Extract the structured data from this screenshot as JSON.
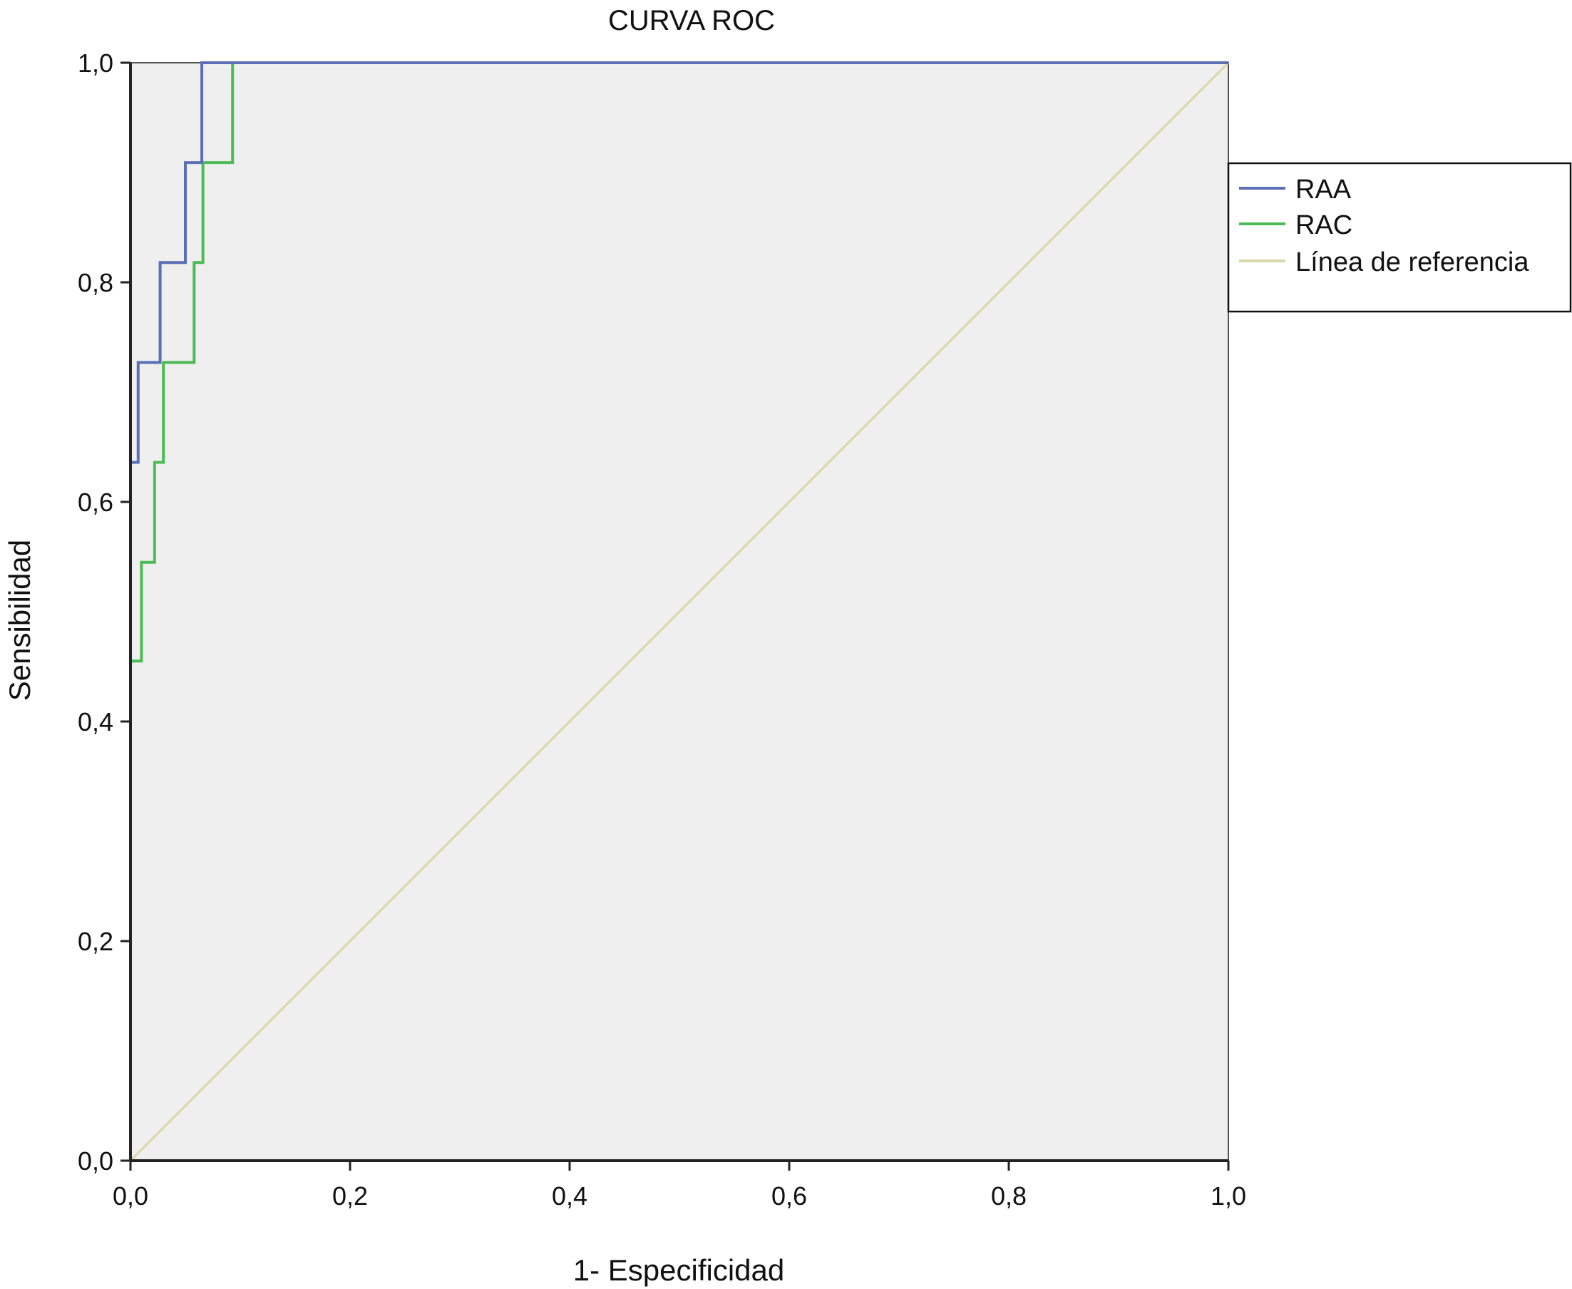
{
  "chart_data": {
    "type": "line",
    "title": "CURVA ROC",
    "xlabel": "1- Especificidad",
    "ylabel": "Sensibilidad",
    "xlim": [
      0,
      1
    ],
    "ylim": [
      0,
      1
    ],
    "x_ticks": [
      0,
      0.2,
      0.4,
      0.6,
      0.8,
      1.0
    ],
    "x_tick_labels": [
      "0,0",
      "0,2",
      "0,4",
      "0,6",
      "0,8",
      "1,0"
    ],
    "y_ticks": [
      0,
      0.2,
      0.4,
      0.6,
      0.8,
      1.0
    ],
    "y_tick_labels": [
      "0,0",
      "0,2",
      "0,4",
      "0,6",
      "0,8",
      "1,0"
    ],
    "grid": false,
    "legend_position": "right",
    "plot_background": "#efefef",
    "series": [
      {
        "name": "RAA",
        "color": "#5a6fb4",
        "step": true,
        "points": [
          [
            0,
            0
          ],
          [
            0,
            0.455
          ],
          [
            0,
            0.636
          ],
          [
            0.007,
            0.636
          ],
          [
            0.007,
            0.727
          ],
          [
            0.027,
            0.727
          ],
          [
            0.027,
            0.818
          ],
          [
            0.05,
            0.818
          ],
          [
            0.05,
            0.909
          ],
          [
            0.065,
            0.909
          ],
          [
            0.065,
            1.0
          ],
          [
            1.0,
            1.0
          ]
        ]
      },
      {
        "name": "RAC",
        "color": "#4dbb55",
        "step": true,
        "points": [
          [
            0,
            0
          ],
          [
            0,
            0.455
          ],
          [
            0.01,
            0.455
          ],
          [
            0.01,
            0.545
          ],
          [
            0.022,
            0.545
          ],
          [
            0.022,
            0.636
          ],
          [
            0.03,
            0.636
          ],
          [
            0.03,
            0.727
          ],
          [
            0.058,
            0.727
          ],
          [
            0.058,
            0.818
          ],
          [
            0.066,
            0.818
          ],
          [
            0.066,
            0.909
          ],
          [
            0.093,
            0.909
          ],
          [
            0.093,
            1.0
          ],
          [
            1.0,
            1.0
          ]
        ]
      },
      {
        "name": "Línea de referencia",
        "color": "#d9d8a6",
        "step": false,
        "points": [
          [
            0,
            0
          ],
          [
            1,
            1
          ]
        ]
      }
    ]
  }
}
